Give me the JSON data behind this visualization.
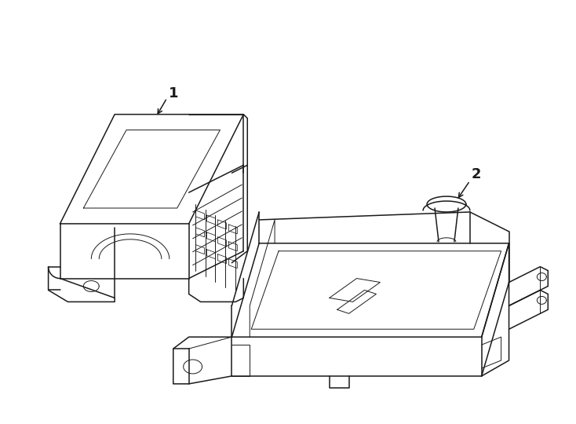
{
  "background_color": "#ffffff",
  "line_color": "#1a1a1a",
  "line_width": 1.1,
  "fig_width": 7.34,
  "fig_height": 5.4,
  "dpi": 100,
  "label1": "1",
  "label2": "2"
}
